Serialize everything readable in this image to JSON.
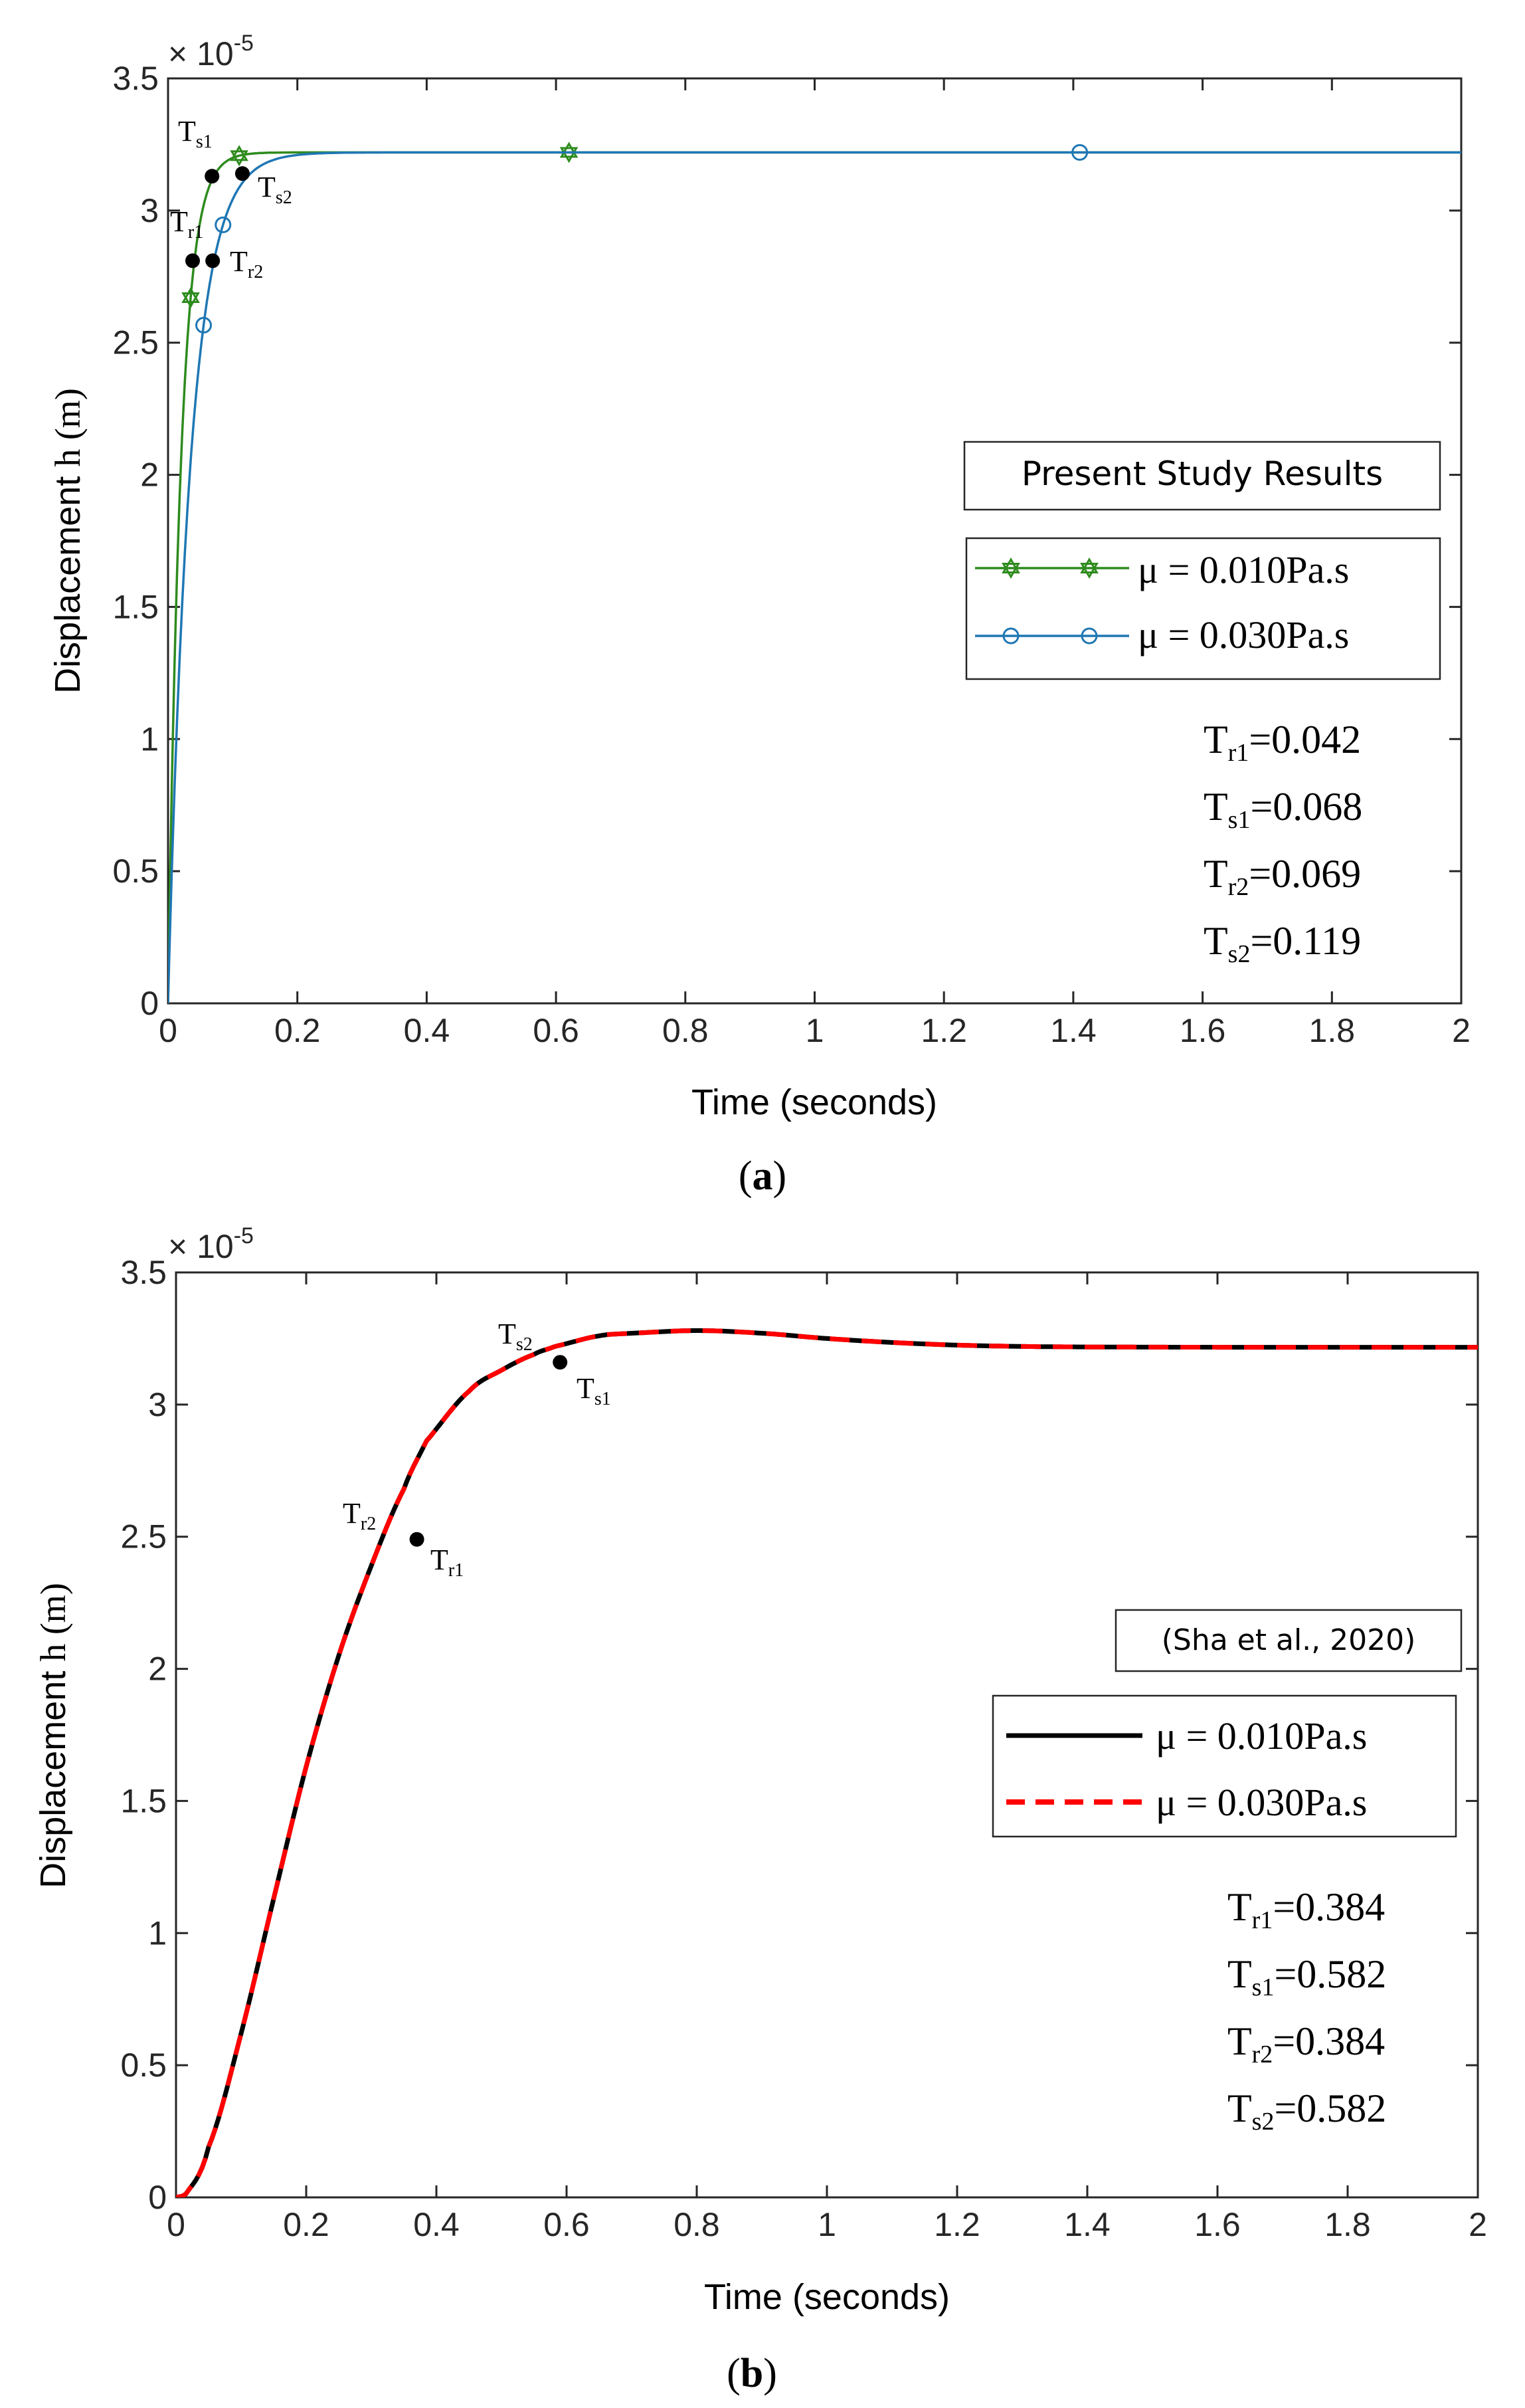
{
  "chart_data": [
    {
      "panel": "a",
      "type": "line",
      "caption_letter": "a",
      "xlabel": "Time (seconds)",
      "ylabel_text": "Displacement",
      "ylabel_var": "h",
      "ylabel_unit": "m",
      "exponent_base": "× 10",
      "exponent_power": "-5",
      "xlim": [
        0,
        2
      ],
      "ylim": [
        0,
        3.5
      ],
      "xticks": [
        "0",
        "0.2",
        "0.4",
        "0.6",
        "0.8",
        "1",
        "1.2",
        "1.4",
        "1.6",
        "1.8",
        "2"
      ],
      "yticks": [
        "0",
        "0.5",
        "1",
        "1.5",
        "2",
        "2.5",
        "3",
        "3.5"
      ],
      "legend_title": "Present Study Results",
      "series": [
        {
          "name": "μ = 0.010Pa.s",
          "color": "#2e8b1e",
          "tau": 0.0198,
          "final": 3.22,
          "markers": [
            0.035,
            0.11,
            0.62
          ],
          "marker": "hexagram"
        },
        {
          "name": "μ = 0.030Pa.s",
          "color": "#1f77b4",
          "tau": 0.0345,
          "final": 3.22,
          "markers": [
            0.055,
            0.085,
            1.41
          ],
          "marker": "circle"
        }
      ],
      "points": [
        {
          "label": "T",
          "sub": "r1",
          "x": 0.038,
          "y": 2.81
        },
        {
          "label": "T",
          "sub": "s1",
          "x": 0.068,
          "y": 3.13
        },
        {
          "label": "T",
          "sub": "r2",
          "x": 0.069,
          "y": 2.81
        },
        {
          "label": "T",
          "sub": "s2",
          "x": 0.115,
          "y": 3.14
        }
      ],
      "annotations": [
        {
          "label": "T",
          "sub": "r1",
          "value": "=0.042"
        },
        {
          "label": "T",
          "sub": "s1",
          "value": "=0.068"
        },
        {
          "label": "T",
          "sub": "r2",
          "value": "=0.069"
        },
        {
          "label": "T",
          "sub": "s2",
          "value": "=0.119"
        }
      ]
    },
    {
      "panel": "b",
      "type": "line",
      "caption_letter": "b",
      "xlabel": "Time (seconds)",
      "ylabel_text": "Displacement",
      "ylabel_var": "h",
      "ylabel_unit": "m",
      "exponent_base": "× 10",
      "exponent_power": "-5",
      "xlim": [
        0,
        2
      ],
      "ylim": [
        0,
        3.5
      ],
      "xticks": [
        "0",
        "0.2",
        "0.4",
        "0.6",
        "0.8",
        "1",
        "1.2",
        "1.4",
        "1.6",
        "1.8",
        "2"
      ],
      "yticks": [
        "0",
        "0.5",
        "1",
        "1.5",
        "2",
        "2.5",
        "3",
        "3.5"
      ],
      "legend_title": "(Sha et al., 2020)",
      "series": [
        {
          "name": "μ = 0.010Pa.s",
          "color": "#000000",
          "style": "solid"
        },
        {
          "name": "μ = 0.030Pa.s",
          "color": "#ff0000",
          "style": "dashed"
        }
      ],
      "curve": {
        "x": [
          0,
          0.02,
          0.05,
          0.1,
          0.15,
          0.2,
          0.25,
          0.3,
          0.35,
          0.384,
          0.45,
          0.5,
          0.55,
          0.582,
          0.65,
          0.7,
          0.8,
          0.9,
          1.0,
          1.1,
          1.2,
          1.3,
          1.4,
          1.6,
          1.8,
          2.0
        ],
        "y": [
          0.0,
          0.03,
          0.19,
          0.62,
          1.13,
          1.63,
          2.05,
          2.39,
          2.68,
          2.86,
          3.05,
          3.13,
          3.19,
          3.22,
          3.26,
          3.27,
          3.28,
          3.27,
          3.25,
          3.235,
          3.225,
          3.22,
          3.218,
          3.217,
          3.217,
          3.217
        ]
      },
      "points": [
        {
          "label": "T",
          "sub": "r1",
          "x": 0.37,
          "y": 2.49
        },
        {
          "label": "T",
          "sub": "s1",
          "x": 0.59,
          "y": 3.16
        }
      ],
      "point_labels": [
        {
          "label": "T",
          "sub": "r2"
        },
        {
          "label": "T",
          "sub": "r1"
        },
        {
          "label": "T",
          "sub": "s2"
        },
        {
          "label": "T",
          "sub": "s1"
        }
      ],
      "annotations": [
        {
          "label": "T",
          "sub": "r1",
          "value": "=0.384"
        },
        {
          "label": "T",
          "sub": "s1",
          "value": "=0.582"
        },
        {
          "label": "T",
          "sub": "r2",
          "value": "=0.384"
        },
        {
          "label": "T",
          "sub": "s2",
          "value": "=0.582"
        }
      ]
    }
  ]
}
